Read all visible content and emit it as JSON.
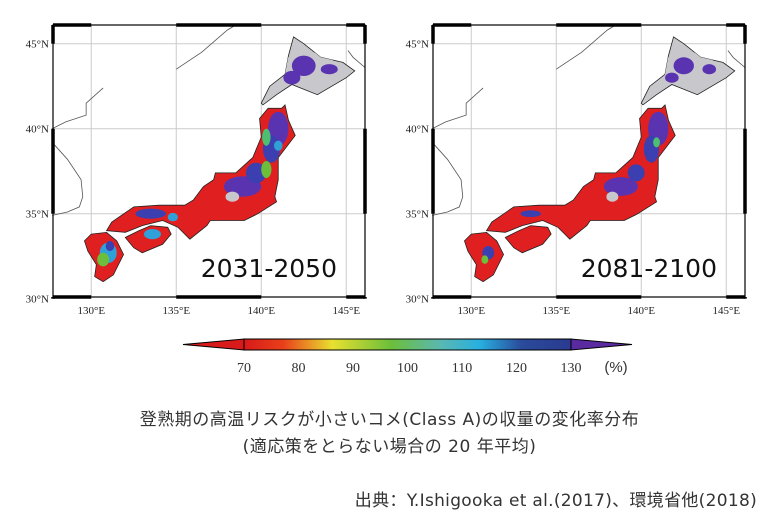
{
  "maps": [
    {
      "period": "2031-2050"
    },
    {
      "period": "2081-2100"
    }
  ],
  "axes": {
    "lat_labels": [
      "45°N",
      "40°N",
      "35°N",
      "30°N"
    ],
    "lon_labels": [
      "130°E",
      "135°E",
      "140°E",
      "145°E"
    ]
  },
  "colorbar": {
    "ticks": [
      "70",
      "80",
      "90",
      "100",
      "110",
      "120",
      "130"
    ],
    "unit": "(%)",
    "colors": [
      "#e01b1b",
      "#f08020",
      "#e8e030",
      "#6cbf3a",
      "#3cb8d8",
      "#2040a0",
      "#5a2aa0"
    ],
    "extend": "both"
  },
  "caption": {
    "line1": "登熟期の高温リスクが小さいコメ(Class A)の収量の変化率分布",
    "line2": "(適応策をとらない場合の 20 年平均)"
  },
  "source": "出典：Y.Ishigooka et al.(2017)、環境省他(2018)"
}
